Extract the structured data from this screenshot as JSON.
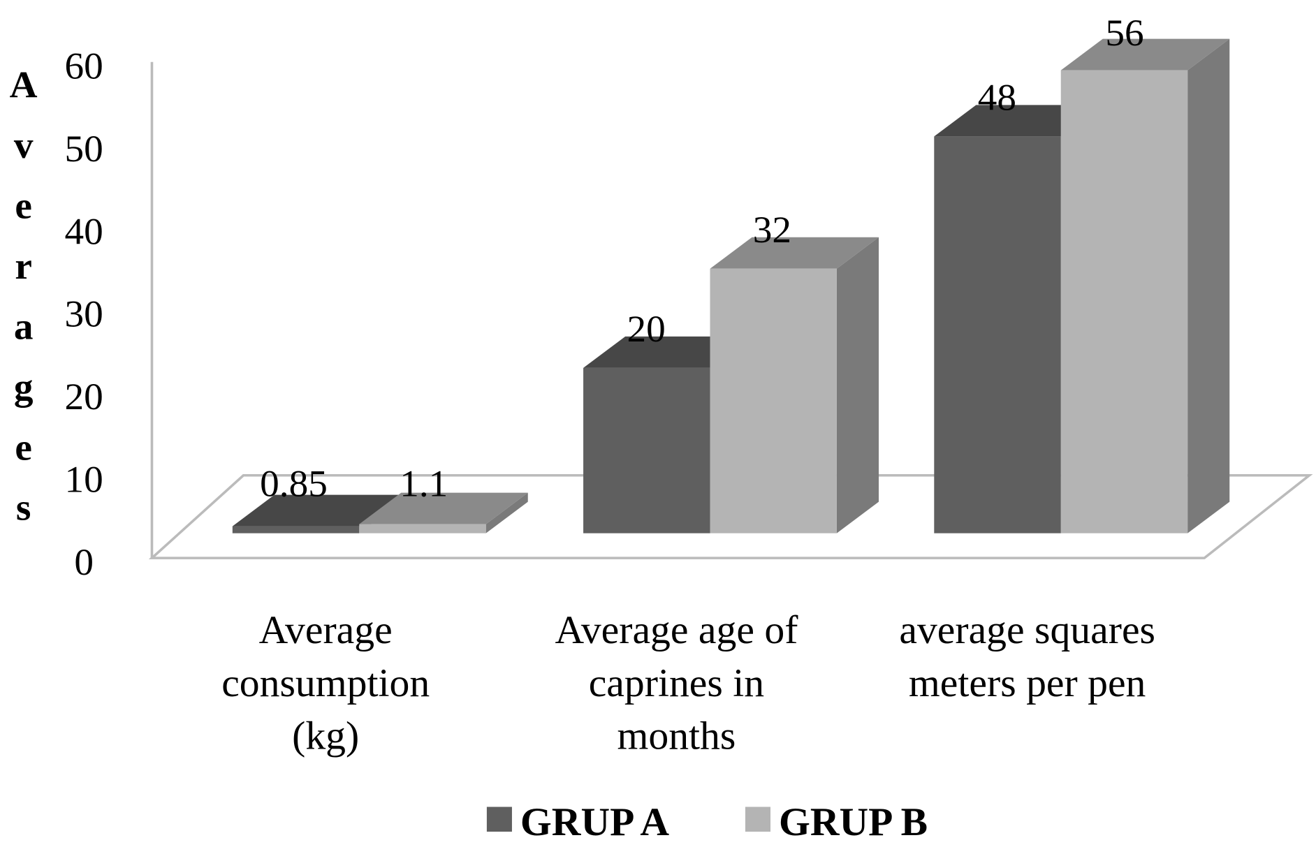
{
  "chart_data": {
    "type": "bar",
    "style": "3d-clustered-column",
    "title": "",
    "xlabel": "",
    "ylabel": "Averages",
    "ylim": [
      0,
      60
    ],
    "yticks": [
      "0",
      "10",
      "20",
      "30",
      "40",
      "50",
      "60"
    ],
    "categories": [
      [
        "Average",
        "consumption",
        "(kg)"
      ],
      [
        "Average age of",
        "caprines in",
        "months"
      ],
      [
        "average squares",
        "meters per pen"
      ]
    ],
    "series": [
      {
        "name": "GRUP A",
        "values": [
          0.85,
          20,
          48
        ],
        "labels": [
          "0.85",
          "20",
          "48"
        ],
        "color": "#5f5f5f",
        "top_color": "#474747"
      },
      {
        "name": "GRUP B",
        "values": [
          1.1,
          32,
          56
        ],
        "labels": [
          "1.1",
          "32",
          "56"
        ],
        "color": "#b4b4b4",
        "top_color": "#8a8a8a"
      }
    ],
    "side_color": "#7a7a7a",
    "grid": false,
    "legend_position": "bottom"
  }
}
